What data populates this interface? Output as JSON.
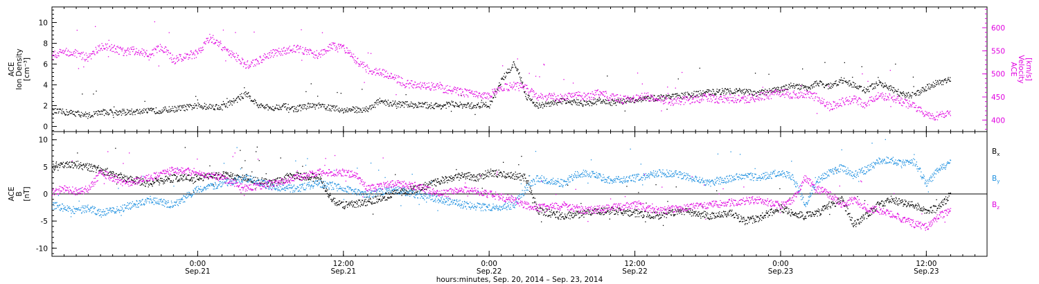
{
  "chart_data": [
    {
      "type": "scatter",
      "panel": "top",
      "left_axis": {
        "label_lines": [
          "ACE",
          "Ion Density",
          "[cm⁻³]"
        ],
        "ylim": [
          -0.5,
          11.5
        ],
        "ticks": [
          0,
          2,
          4,
          6,
          8,
          10
        ],
        "color": "#000000"
      },
      "right_axis": {
        "label_lines": [
          "ACE",
          "Velocity",
          "[km/s]"
        ],
        "ylim": [
          375,
          645
        ],
        "ticks": [
          400,
          450,
          500,
          550,
          600
        ],
        "color": "#e000e0"
      },
      "xlim_hours": [
        0,
        77
      ],
      "series": [
        {
          "axis": "left",
          "color": "#000000",
          "x": [
            0,
            2,
            3,
            4,
            6,
            8,
            10,
            12,
            14,
            15,
            16,
            17,
            18,
            19,
            20,
            21,
            22,
            23,
            24,
            26,
            27,
            28,
            30,
            32,
            33,
            34,
            36,
            37,
            38,
            38.5,
            39,
            40,
            41,
            42,
            43,
            44,
            45,
            46,
            48,
            50,
            52,
            54,
            56,
            58,
            60,
            61,
            62,
            63,
            64,
            65,
            66,
            67,
            68,
            69,
            70,
            71,
            72,
            73,
            74
          ],
          "values": [
            1.5,
            1.3,
            1.1,
            1.4,
            1.4,
            1.5,
            1.7,
            2.0,
            1.9,
            2.5,
            3.2,
            2.0,
            1.8,
            2.0,
            1.7,
            2.0,
            2.0,
            1.8,
            1.6,
            1.7,
            2.5,
            2.2,
            2.1,
            2.0,
            2.2,
            2.0,
            2.1,
            4.5,
            6.0,
            5.0,
            3.0,
            2.0,
            2.2,
            2.5,
            2.4,
            2.2,
            2.5,
            2.3,
            2.6,
            2.8,
            3.0,
            3.3,
            3.5,
            3.2,
            3.6,
            4.0,
            3.7,
            4.2,
            3.9,
            4.5,
            4.0,
            3.5,
            4.2,
            3.7,
            3.1,
            3.0,
            3.8,
            4.3,
            4.5
          ]
        },
        {
          "axis": "right",
          "color": "#e000e0",
          "x": [
            0,
            1,
            2,
            3,
            4,
            5,
            6,
            7,
            8,
            9,
            10,
            11,
            12,
            13,
            14,
            15,
            16,
            17,
            18,
            19,
            20,
            21,
            22,
            23,
            24,
            25,
            26,
            27,
            28,
            29,
            30,
            31,
            32,
            33,
            34,
            35,
            36,
            37,
            38,
            39,
            40,
            41,
            42,
            43,
            44,
            45,
            46,
            47,
            48,
            49,
            50,
            51,
            52,
            53,
            54,
            55,
            56,
            57,
            58,
            59,
            60,
            61,
            62,
            63,
            64,
            65,
            66,
            67,
            68,
            69,
            70,
            71,
            72,
            73,
            74
          ],
          "values": [
            540,
            550,
            545,
            535,
            560,
            555,
            548,
            552,
            540,
            560,
            530,
            540,
            545,
            580,
            560,
            540,
            520,
            530,
            545,
            550,
            555,
            550,
            540,
            560,
            555,
            530,
            510,
            505,
            495,
            480,
            478,
            475,
            470,
            465,
            460,
            455,
            455,
            470,
            475,
            470,
            450,
            452,
            448,
            455,
            450,
            460,
            450,
            445,
            448,
            452,
            445,
            440,
            443,
            447,
            450,
            445,
            448,
            445,
            450,
            455,
            460,
            455,
            458,
            450,
            430,
            440,
            445,
            435,
            455,
            450,
            440,
            430,
            410,
            410,
            420
          ]
        }
      ]
    },
    {
      "type": "scatter",
      "panel": "bottom",
      "left_axis": {
        "label_lines": [
          "ACE",
          "B",
          "[nT]"
        ],
        "ylim": [
          -11.5,
          11.5
        ],
        "ticks": [
          -10,
          -5,
          0,
          5,
          10
        ],
        "color": "#000000"
      },
      "zero_line": 0,
      "xlim_hours": [
        0,
        77
      ],
      "series": [
        {
          "name": "B",
          "subscript": "x",
          "color": "#000000",
          "x": [
            0,
            2,
            3,
            4,
            6,
            8,
            10,
            12,
            14,
            16,
            18,
            20,
            22,
            23,
            24,
            26,
            28,
            30,
            32,
            34,
            35,
            36,
            38,
            39,
            40,
            42,
            44,
            46,
            48,
            50,
            52,
            54,
            56,
            57,
            58,
            60,
            61,
            62,
            63,
            64,
            65,
            66,
            67,
            68,
            69,
            70,
            71,
            72,
            73,
            74
          ],
          "values": [
            5.0,
            5.5,
            5.0,
            4.5,
            3.0,
            2.0,
            3.0,
            3.0,
            3.5,
            3.0,
            2.0,
            3.5,
            3.0,
            -1.0,
            -2.0,
            -1.5,
            0.0,
            1.0,
            2.5,
            3.5,
            3.0,
            4.0,
            3.5,
            3.0,
            -3.0,
            -4.0,
            -3.5,
            -3.0,
            -3.5,
            -4.0,
            -3.0,
            -4.0,
            -3.5,
            -5.0,
            -4.5,
            -2.5,
            -3.5,
            -4.0,
            -3.5,
            -2.0,
            -1.0,
            -5.5,
            -4.0,
            -2.0,
            -1.0,
            -1.5,
            -2.0,
            -3.0,
            -2.5,
            0.0
          ]
        },
        {
          "name": "B",
          "subscript": "y",
          "color": "#1e90e0",
          "x": [
            0,
            2,
            3,
            4,
            6,
            8,
            10,
            12,
            14,
            16,
            18,
            20,
            22,
            24,
            26,
            28,
            30,
            32,
            34,
            36,
            38,
            39,
            40,
            41,
            42,
            43,
            44,
            46,
            48,
            50,
            52,
            54,
            56,
            57,
            58,
            60,
            61,
            62,
            63,
            64,
            65,
            66,
            67,
            68,
            69,
            70,
            71,
            72,
            73,
            74
          ],
          "values": [
            -2.0,
            -3.0,
            -2.5,
            -3.5,
            -2.5,
            -1.0,
            -2.0,
            1.0,
            2.0,
            3.0,
            1.5,
            1.0,
            2.0,
            1.0,
            0.0,
            1.0,
            0.0,
            -1.0,
            -2.0,
            -2.5,
            -2.0,
            1.0,
            3.0,
            2.5,
            2.0,
            3.5,
            4.0,
            2.5,
            3.0,
            4.0,
            3.5,
            2.0,
            3.0,
            3.5,
            3.0,
            4.0,
            3.0,
            -2.0,
            2.5,
            4.0,
            5.0,
            3.5,
            4.5,
            6.0,
            6.5,
            5.5,
            6.0,
            2.0,
            4.5,
            6.0
          ]
        },
        {
          "name": "B",
          "subscript": "z",
          "color": "#e000e0",
          "x": [
            0,
            1,
            2,
            3,
            4,
            6,
            8,
            10,
            12,
            14,
            16,
            18,
            20,
            22,
            24,
            25,
            26,
            28,
            30,
            32,
            34,
            36,
            38,
            39,
            40,
            42,
            44,
            46,
            48,
            50,
            52,
            54,
            56,
            58,
            60,
            61,
            62,
            63,
            64,
            65,
            66,
            67,
            68,
            69,
            70,
            71,
            72,
            73,
            74
          ],
          "values": [
            0.5,
            1.0,
            0.5,
            1.0,
            4.0,
            2.0,
            3.0,
            4.5,
            4.0,
            3.0,
            1.0,
            2.0,
            3.0,
            4.0,
            4.0,
            3.5,
            1.0,
            2.0,
            1.5,
            0.0,
            1.0,
            0.0,
            -1.0,
            -2.0,
            -2.5,
            -2.0,
            -3.0,
            -2.5,
            -2.0,
            -3.0,
            -2.5,
            -2.0,
            -1.5,
            -1.0,
            -2.0,
            -1.0,
            3.0,
            1.0,
            0.0,
            -2.0,
            -1.0,
            -2.5,
            -3.0,
            -3.5,
            -4.5,
            -5.5,
            -6.0,
            -4.0,
            -3.0
          ]
        }
      ]
    }
  ],
  "xaxis": {
    "start_label": "hours:minutes, Sep. 20, 2014 – Sep. 23, 2014",
    "ticks": [
      {
        "hour": 12,
        "time": "0:00",
        "date": "Sep.21"
      },
      {
        "hour": 24,
        "time": "12:00",
        "date": "Sep.21"
      },
      {
        "hour": 36,
        "time": "0:00",
        "date": "Sep.22"
      },
      {
        "hour": 48,
        "time": "12:00",
        "date": "Sep.22"
      },
      {
        "hour": 60,
        "time": "0:00",
        "date": "Sep.23"
      },
      {
        "hour": 72,
        "time": "12:00",
        "date": "Sep.23"
      }
    ],
    "minor_step_hours": 1
  }
}
